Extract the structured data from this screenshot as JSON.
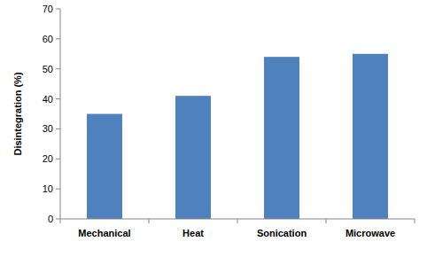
{
  "chart_data": {
    "type": "bar",
    "y_label": "Disintegration (%)",
    "categories": [
      "Mechanical",
      "Heat",
      "Sonication",
      "Microwave"
    ],
    "values": [
      35,
      41,
      54,
      55
    ],
    "color": "#4f81bd",
    "ylim": [
      0,
      70
    ],
    "yticks": [
      0,
      10,
      20,
      30,
      40,
      50,
      60,
      70
    ],
    "grid": false
  }
}
